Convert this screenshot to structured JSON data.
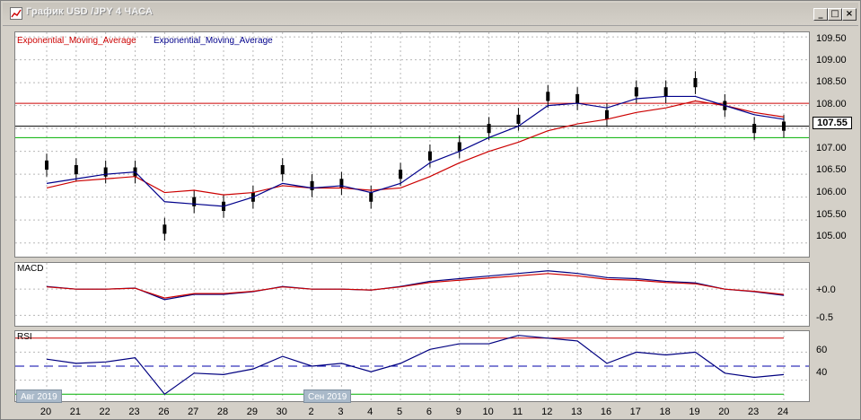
{
  "window": {
    "title": "График USD /JPY  4 ЧАСА",
    "buttons": {
      "minimize": "_",
      "maximize": "□",
      "close": "×"
    }
  },
  "main_chart": {
    "legend": {
      "ema_red": "Exponential_Moving_Average",
      "ema_blue": "Exponential_Moving_Average"
    },
    "price_labels": [
      "109.50",
      "109.00",
      "108.50",
      "108.00",
      "107.50",
      "107.00",
      "106.50",
      "106.00",
      "105.50",
      "105.00"
    ],
    "current_price": "107.55",
    "colors": {
      "ema_red": "#cc0000",
      "ema_blue": "#00008b",
      "resistance": "#cc0000",
      "support": "#00b000",
      "current": "#000000"
    }
  },
  "macd": {
    "title": "MACD",
    "labels": [
      "+0.0",
      "-0.5"
    ]
  },
  "rsi": {
    "title": "RSI",
    "labels": [
      "60",
      "40"
    ]
  },
  "dates": {
    "aug": "Авг 2019",
    "sep": "Сен 2019"
  },
  "x_axis": [
    "20",
    "21",
    "22",
    "23",
    "26",
    "27",
    "28",
    "29",
    "30",
    "2",
    "3",
    "4",
    "5",
    "6",
    "9",
    "10",
    "11",
    "12",
    "13",
    "16",
    "17",
    "18",
    "19",
    "20",
    "23",
    "24"
  ],
  "chart_data": {
    "type": "line",
    "title": "График USD /JPY  4 ЧАСА",
    "xlabel": "",
    "ylabel": "",
    "categories": [
      "20",
      "21",
      "22",
      "23",
      "26",
      "27",
      "28",
      "29",
      "30",
      "2",
      "3",
      "4",
      "5",
      "6",
      "9",
      "10",
      "11",
      "12",
      "13",
      "16",
      "17",
      "18",
      "19",
      "20",
      "23",
      "24"
    ],
    "ylim": [
      104.7,
      109.6
    ],
    "series": [
      {
        "name": "Exponential_Moving_Average",
        "color": "#cc0000",
        "values": [
          106.2,
          106.35,
          106.4,
          106.45,
          106.1,
          106.15,
          106.05,
          106.1,
          106.25,
          106.2,
          106.2,
          106.15,
          106.2,
          106.45,
          106.75,
          107.0,
          107.2,
          107.45,
          107.6,
          107.7,
          107.85,
          107.95,
          108.1,
          108.0,
          107.85,
          107.75
        ]
      },
      {
        "name": "Exponential_Moving_Average",
        "color": "#00008b",
        "values": [
          106.3,
          106.4,
          106.5,
          106.55,
          105.9,
          105.85,
          105.8,
          106.0,
          106.3,
          106.2,
          106.25,
          106.1,
          106.3,
          106.75,
          107.0,
          107.3,
          107.55,
          108.0,
          108.05,
          107.95,
          108.15,
          108.2,
          108.2,
          108.0,
          107.8,
          107.7
        ]
      }
    ],
    "candles_close": [
      106.7,
      106.6,
      106.55,
      106.55,
      105.3,
      105.9,
      105.8,
      106.0,
      106.6,
      106.25,
      106.3,
      106.0,
      106.5,
      106.9,
      107.1,
      107.5,
      107.7,
      108.2,
      108.15,
      107.8,
      108.3,
      108.3,
      108.5,
      108.0,
      107.5,
      107.55
    ],
    "hlines": {
      "resistance": 108.05,
      "current": 107.55,
      "support": 107.3
    },
    "macd": {
      "ylim": [
        -0.7,
        0.5
      ],
      "values": [
        0.05,
        0.0,
        0.0,
        0.02,
        -0.2,
        -0.1,
        -0.1,
        -0.05,
        0.05,
        0.0,
        0.0,
        -0.02,
        0.05,
        0.15,
        0.2,
        0.25,
        0.3,
        0.35,
        0.3,
        0.22,
        0.2,
        0.15,
        0.12,
        0.0,
        -0.05,
        -0.12
      ]
    },
    "rsi": {
      "ylim": [
        25,
        75
      ],
      "upper": 70,
      "lower": 30,
      "values": [
        55,
        52,
        53,
        56,
        30,
        45,
        44,
        48,
        57,
        50,
        52,
        46,
        52,
        62,
        66,
        66,
        72,
        70,
        68,
        52,
        60,
        58,
        60,
        45,
        42,
        44
      ]
    }
  }
}
